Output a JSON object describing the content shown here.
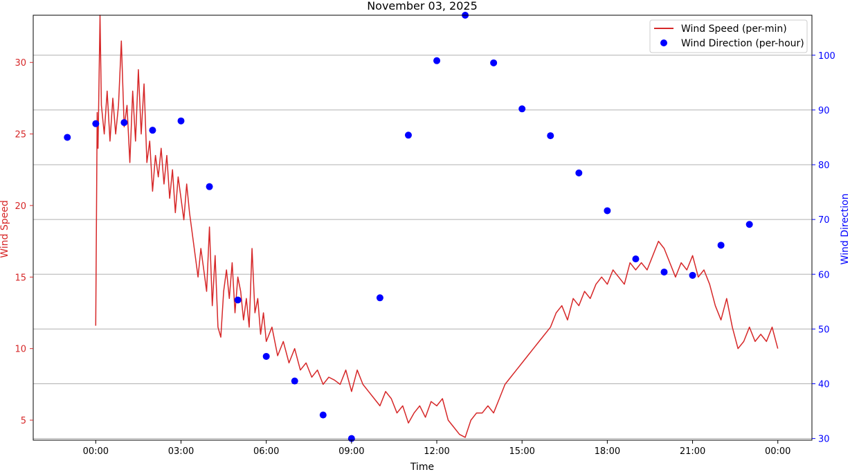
{
  "chart_data": {
    "type": "line",
    "title": "November 03, 2025",
    "xlabel": "Time",
    "ylabel_left": "Wind Speed",
    "ylabel_right": "Wind Direction",
    "x_ticks": [
      "00:00",
      "03:00",
      "06:00",
      "09:00",
      "12:00",
      "15:00",
      "18:00",
      "21:00",
      "00:00"
    ],
    "x_tick_hours": [
      0,
      3,
      6,
      9,
      12,
      15,
      18,
      21,
      24
    ],
    "xlim_hours": [
      -2.2,
      25.2
    ],
    "y_left_ticks": [
      5,
      10,
      15,
      20,
      25,
      30
    ],
    "ylim_left": [
      3.6,
      33.3
    ],
    "y_right_ticks": [
      30,
      40,
      50,
      60,
      70,
      80,
      90,
      100
    ],
    "ylim_right": [
      29.7,
      107.3
    ],
    "grid": "horizontal (right axis)",
    "legend_position": "top-right",
    "colors": {
      "speed": "#d62728",
      "direction": "#0000ff",
      "left_axis": "#d62728",
      "right_axis": "#0000ff"
    },
    "series": [
      {
        "name": "Wind Speed (per-min)",
        "kind": "line",
        "axis": "left",
        "hours": [
          0.0,
          0.05,
          0.08,
          0.15,
          0.2,
          0.3,
          0.4,
          0.5,
          0.6,
          0.7,
          0.8,
          0.9,
          1.0,
          1.1,
          1.2,
          1.3,
          1.4,
          1.5,
          1.6,
          1.7,
          1.8,
          1.9,
          2.0,
          2.1,
          2.2,
          2.3,
          2.4,
          2.5,
          2.6,
          2.7,
          2.8,
          2.9,
          3.0,
          3.1,
          3.2,
          3.3,
          3.4,
          3.5,
          3.6,
          3.7,
          3.8,
          3.9,
          4.0,
          4.1,
          4.2,
          4.3,
          4.4,
          4.5,
          4.6,
          4.7,
          4.8,
          4.9,
          5.0,
          5.1,
          5.2,
          5.3,
          5.4,
          5.5,
          5.6,
          5.7,
          5.8,
          5.9,
          6.0,
          6.2,
          6.4,
          6.6,
          6.8,
          7.0,
          7.2,
          7.4,
          7.6,
          7.8,
          8.0,
          8.2,
          8.4,
          8.6,
          8.8,
          9.0,
          9.2,
          9.4,
          9.6,
          9.8,
          10.0,
          10.2,
          10.4,
          10.6,
          10.8,
          11.0,
          11.2,
          11.4,
          11.6,
          11.8,
          12.0,
          12.2,
          12.4,
          12.6,
          12.8,
          13.0,
          13.2,
          13.4,
          13.6,
          13.8,
          14.0,
          14.2,
          14.4,
          14.6,
          14.8,
          15.0,
          15.2,
          15.4,
          15.6,
          15.8,
          16.0,
          16.2,
          16.4,
          16.6,
          16.8,
          17.0,
          17.2,
          17.4,
          17.6,
          17.8,
          18.0,
          18.2,
          18.4,
          18.6,
          18.8,
          19.0,
          19.2,
          19.4,
          19.6,
          19.8,
          20.0,
          20.2,
          20.4,
          20.6,
          20.8,
          21.0,
          21.2,
          21.4,
          21.6,
          21.8,
          22.0,
          22.2,
          22.4,
          22.6,
          22.8,
          23.0,
          23.2,
          23.4,
          23.6,
          23.8,
          24.0
        ],
        "values": [
          11.6,
          26.5,
          24.0,
          33.3,
          27.0,
          25.0,
          28.0,
          24.5,
          27.5,
          25.0,
          27.0,
          31.5,
          25.5,
          27.0,
          23.0,
          28.0,
          24.5,
          29.5,
          25.0,
          28.5,
          23.0,
          24.5,
          21.0,
          23.5,
          22.0,
          24.0,
          21.5,
          23.5,
          20.5,
          22.5,
          19.5,
          22.0,
          20.5,
          19.0,
          21.5,
          19.5,
          18.0,
          16.5,
          15.0,
          17.0,
          15.5,
          14.0,
          18.5,
          13.0,
          16.5,
          11.5,
          10.8,
          14.0,
          15.5,
          13.5,
          16.0,
          12.5,
          15.0,
          14.0,
          12.0,
          13.5,
          11.5,
          17.0,
          12.5,
          13.5,
          11.0,
          12.5,
          10.5,
          11.5,
          9.5,
          10.5,
          9.0,
          10.0,
          8.5,
          9.0,
          8.0,
          8.5,
          7.5,
          8.0,
          7.8,
          7.5,
          8.5,
          7.0,
          8.5,
          7.5,
          7.0,
          6.5,
          6.0,
          7.0,
          6.5,
          5.5,
          6.0,
          4.8,
          5.5,
          6.0,
          5.2,
          6.3,
          6.0,
          6.5,
          5.0,
          4.5,
          4.0,
          3.8,
          5.0,
          5.5,
          5.5,
          6.0,
          5.5,
          6.5,
          7.5,
          8.0,
          8.5,
          9.0,
          9.5,
          10.0,
          10.5,
          11.0,
          11.5,
          12.5,
          13.0,
          12.0,
          13.5,
          13.0,
          14.0,
          13.5,
          14.5,
          15.0,
          14.5,
          15.5,
          15.0,
          14.5,
          16.0,
          15.5,
          16.0,
          15.5,
          16.5,
          17.5,
          17.0,
          16.0,
          15.0,
          16.0,
          15.5,
          16.5,
          15.0,
          15.5,
          14.5,
          13.0,
          12.0,
          13.5,
          11.5,
          10.0,
          10.5,
          11.5,
          10.5,
          11.0,
          10.5,
          11.5,
          10.0
        ]
      },
      {
        "name": "Wind Direction (per-hour)",
        "kind": "scatter",
        "axis": "right",
        "hours": [
          -1,
          0,
          1,
          2,
          3,
          4,
          5,
          6,
          7,
          8,
          9,
          10,
          11,
          12,
          13,
          14,
          15,
          16,
          17,
          18,
          19,
          20,
          21,
          22,
          23
        ],
        "values": [
          85,
          87.5,
          87.7,
          86.3,
          88,
          76,
          55.3,
          45,
          40.5,
          34.3,
          30,
          55.7,
          85.4,
          99,
          107.3,
          98.6,
          90.2,
          85.3,
          78.5,
          71.6,
          62.8,
          60.4,
          59.8,
          65.3,
          69.1
        ]
      }
    ]
  }
}
